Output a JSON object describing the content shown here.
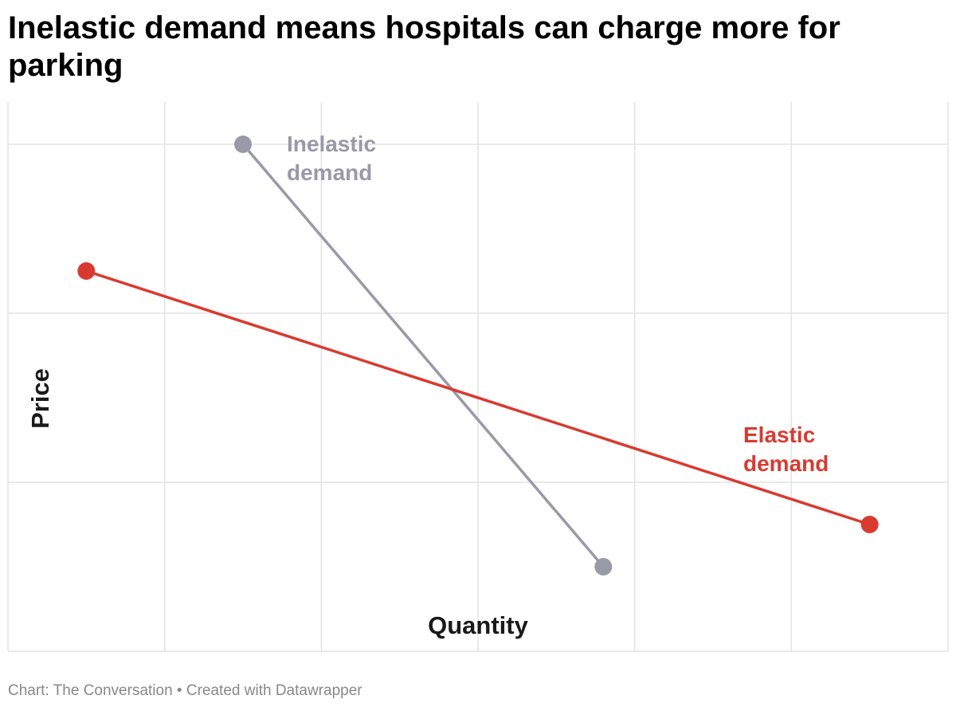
{
  "title": "Inelastic demand means hospitals can charge more for parking",
  "footer": {
    "source": "Chart: The Conversation",
    "separator": " • ",
    "credit": "Created with Datawrapper"
  },
  "colors": {
    "inelastic": "#9999a8",
    "elastic": "#d93a30",
    "grid": "#e3e3e3",
    "axis_label": "#1a1a1a"
  },
  "chart_data": {
    "type": "line",
    "title": "Inelastic demand means hospitals can charge more for parking",
    "xlabel": "Quantity",
    "ylabel": "Price",
    "xlim": [
      0,
      6
    ],
    "ylim": [
      0,
      3.25
    ],
    "grid": true,
    "x_ticks": [
      0,
      1,
      2,
      3,
      4,
      5,
      6
    ],
    "y_ticks": [
      0,
      1,
      2,
      3
    ],
    "tick_labels_visible": false,
    "series": [
      {
        "name": "Inelastic demand",
        "label_lines": [
          "Inelastic",
          "demand"
        ],
        "color": "#9999a8",
        "points": [
          [
            1.5,
            3.0
          ],
          [
            3.8,
            0.5
          ]
        ]
      },
      {
        "name": "Elastic demand",
        "label_lines": [
          "Elastic",
          "demand"
        ],
        "color": "#d93a30",
        "points": [
          [
            0.5,
            2.25
          ],
          [
            5.5,
            0.75
          ]
        ]
      }
    ]
  }
}
